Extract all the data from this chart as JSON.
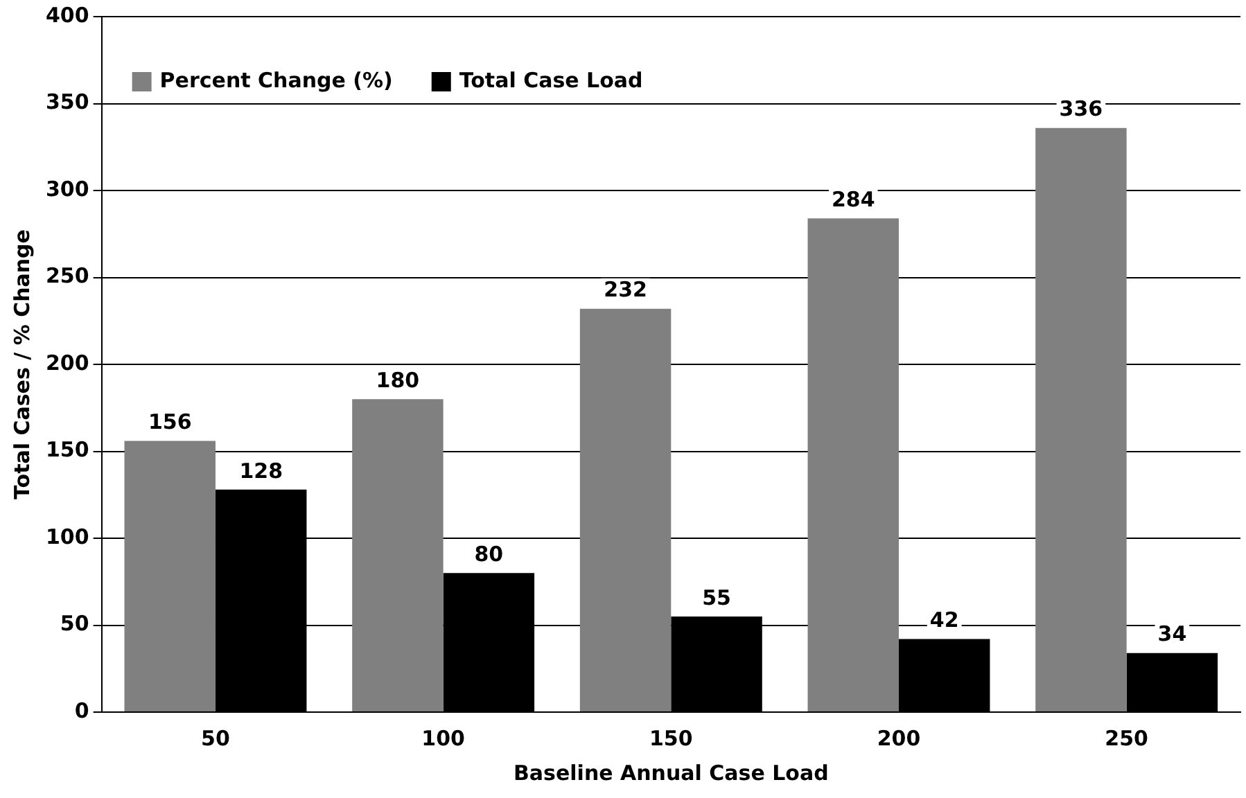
{
  "chart_data": {
    "type": "bar",
    "xlabel": "Baseline Annual Case Load",
    "ylabel": "Total Cases / % Change",
    "categories": [
      "50",
      "100",
      "150",
      "200",
      "250"
    ],
    "series": [
      {
        "name": "Percent Change (%)",
        "color": "#808080",
        "values": [
          156,
          180,
          232,
          284,
          336
        ]
      },
      {
        "name": "Total Case Load",
        "color": "#000000",
        "values": [
          128,
          80,
          55,
          42,
          34
        ]
      }
    ],
    "ylim": [
      0,
      400
    ],
    "yticks": [
      0,
      50,
      100,
      150,
      200,
      250,
      300,
      350,
      400
    ],
    "grid": "y",
    "legend": "top left",
    "data_labels": true
  }
}
